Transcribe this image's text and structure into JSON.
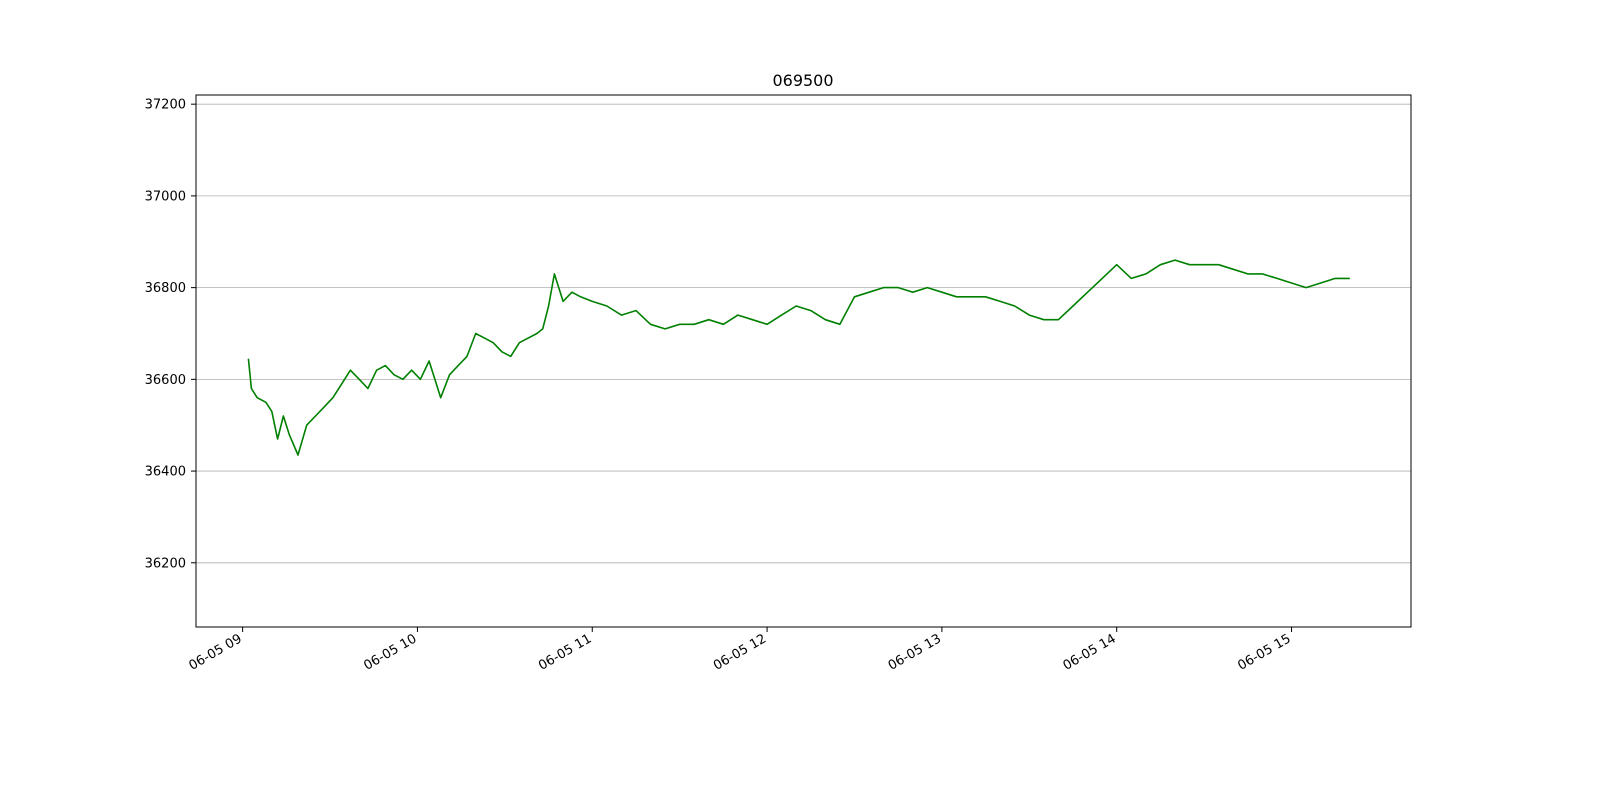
{
  "chart_data": {
    "type": "line",
    "title": "069500",
    "xlabel": "",
    "ylabel": "",
    "x_range": [
      "06-05 08:44",
      "06-05 15:41"
    ],
    "ylim": [
      36060,
      37220
    ],
    "y_ticks": [
      36200,
      36400,
      36600,
      36800,
      37000,
      37200
    ],
    "y_tick_labels": [
      "36200",
      "36400",
      "36600",
      "36800",
      "37000",
      "37200"
    ],
    "x_ticks": [
      "06-05 09:00",
      "06-05 10:00",
      "06-05 11:00",
      "06-05 12:00",
      "06-05 13:00",
      "06-05 14:00",
      "06-05 15:00"
    ],
    "x_tick_labels": [
      "06-05 09",
      "06-05 10",
      "06-05 11",
      "06-05 12",
      "06-05 13",
      "06-05 14",
      "06-05 15"
    ],
    "grid": "horizontal",
    "line_color": "#008000",
    "series": [
      {
        "x": [
          "06-05 09:02",
          "06-05 09:03",
          "06-05 09:05",
          "06-05 09:08",
          "06-05 09:10",
          "06-05 09:12",
          "06-05 09:14",
          "06-05 09:16",
          "06-05 09:19",
          "06-05 09:22",
          "06-05 09:25",
          "06-05 09:28",
          "06-05 09:31",
          "06-05 09:34",
          "06-05 09:37",
          "06-05 09:40",
          "06-05 09:43",
          "06-05 09:46",
          "06-05 09:49",
          "06-05 09:52",
          "06-05 09:55",
          "06-05 09:58",
          "06-05 10:01",
          "06-05 10:04",
          "06-05 10:08",
          "06-05 10:11",
          "06-05 10:14",
          "06-05 10:17",
          "06-05 10:20",
          "06-05 10:23",
          "06-05 10:26",
          "06-05 10:29",
          "06-05 10:32",
          "06-05 10:35",
          "06-05 10:38",
          "06-05 10:41",
          "06-05 10:43",
          "06-05 10:45",
          "06-05 10:47",
          "06-05 10:50",
          "06-05 10:53",
          "06-05 10:56",
          "06-05 11:00",
          "06-05 11:05",
          "06-05 11:10",
          "06-05 11:15",
          "06-05 11:20",
          "06-05 11:25",
          "06-05 11:30",
          "06-05 11:35",
          "06-05 11:40",
          "06-05 11:45",
          "06-05 11:50",
          "06-05 11:55",
          "06-05 12:00",
          "06-05 12:05",
          "06-05 12:10",
          "06-05 12:15",
          "06-05 12:20",
          "06-05 12:25",
          "06-05 12:30",
          "06-05 12:35",
          "06-05 12:40",
          "06-05 12:45",
          "06-05 12:50",
          "06-05 12:55",
          "06-05 13:00",
          "06-05 13:05",
          "06-05 13:10",
          "06-05 13:15",
          "06-05 13:20",
          "06-05 13:25",
          "06-05 13:30",
          "06-05 13:35",
          "06-05 13:40",
          "06-05 13:45",
          "06-05 13:50",
          "06-05 13:55",
          "06-05 14:00",
          "06-05 14:05",
          "06-05 14:10",
          "06-05 14:15",
          "06-05 14:20",
          "06-05 14:25",
          "06-05 14:30",
          "06-05 14:35",
          "06-05 14:40",
          "06-05 14:45",
          "06-05 14:50",
          "06-05 14:55",
          "06-05 15:00",
          "06-05 15:05",
          "06-05 15:10",
          "06-05 15:15",
          "06-05 15:20"
        ],
        "values": [
          36645,
          36580,
          36560,
          36550,
          36530,
          36470,
          36520,
          36480,
          36435,
          36500,
          36520,
          36540,
          36560,
          36590,
          36620,
          36600,
          36580,
          36620,
          36630,
          36610,
          36600,
          36620,
          36600,
          36640,
          36560,
          36610,
          36630,
          36650,
          36700,
          36690,
          36680,
          36660,
          36650,
          36680,
          36690,
          36700,
          36710,
          36760,
          36830,
          36770,
          36790,
          36780,
          36770,
          36760,
          36740,
          36750,
          36720,
          36710,
          36720,
          36720,
          36730,
          36720,
          36740,
          36730,
          36720,
          36740,
          36760,
          36750,
          36730,
          36720,
          36780,
          36790,
          36800,
          36800,
          36790,
          36800,
          36790,
          36780,
          36780,
          36780,
          36770,
          36760,
          36740,
          36730,
          36730,
          36760,
          36790,
          36820,
          36850,
          36820,
          36830,
          36850,
          36860,
          36850,
          36850,
          36850,
          36840,
          36830,
          36830,
          36820,
          36810,
          36800,
          36810,
          36820,
          36820
        ]
      }
    ]
  }
}
